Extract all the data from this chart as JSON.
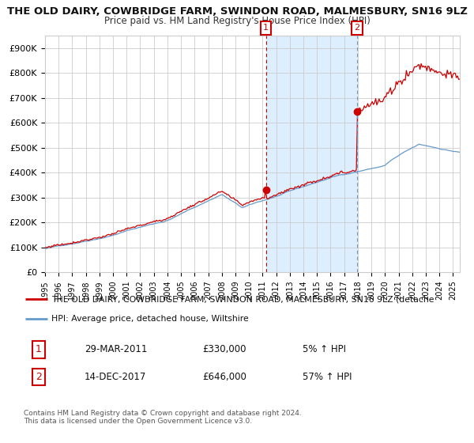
{
  "title1": "THE OLD DAIRY, COWBRIDGE FARM, SWINDON ROAD, MALMESBURY, SN16 9LZ",
  "title2": "Price paid vs. HM Land Registry's House Price Index (HPI)",
  "xlim_start": 1995.0,
  "xlim_end": 2025.5,
  "ylim": [
    0,
    950000
  ],
  "yticks": [
    0,
    100000,
    200000,
    300000,
    400000,
    500000,
    600000,
    700000,
    800000,
    900000
  ],
  "ytick_labels": [
    "£0",
    "£100K",
    "£200K",
    "£300K",
    "£400K",
    "£500K",
    "£600K",
    "£700K",
    "£800K",
    "£900K"
  ],
  "sale1_date": 2011.24,
  "sale1_price": 330000,
  "sale2_date": 2017.95,
  "sale2_price": 646000,
  "legend1": "THE OLD DAIRY, COWBRIDGE FARM, SWINDON ROAD, MALMESBURY, SN16 9LZ (detache",
  "legend2": "HPI: Average price, detached house, Wiltshire",
  "note1_num": "1",
  "note1_date": "29-MAR-2011",
  "note1_price": "£330,000",
  "note1_hpi": "5% ↑ HPI",
  "note2_num": "2",
  "note2_date": "14-DEC-2017",
  "note2_price": "£646,000",
  "note2_hpi": "57% ↑ HPI",
  "copyright": "Contains HM Land Registry data © Crown copyright and database right 2024.\nThis data is licensed under the Open Government Licence v3.0.",
  "line_color_red": "#cc0000",
  "line_color_blue": "#6699cc",
  "shade_color": "#ddeeff",
  "grid_color": "#cccccc",
  "bg_color": "#ffffff"
}
